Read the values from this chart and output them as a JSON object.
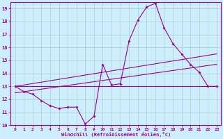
{
  "xlabel": "Windchill (Refroidissement éolien,°C)",
  "background_color": "#cceeff",
  "grid_color": "#aaddcc",
  "line_color": "#990099",
  "xlim": [
    -0.5,
    23.5
  ],
  "ylim": [
    10,
    19.5
  ],
  "yticks": [
    10,
    11,
    12,
    13,
    14,
    15,
    16,
    17,
    18,
    19
  ],
  "xticks": [
    0,
    1,
    2,
    3,
    4,
    5,
    6,
    7,
    8,
    9,
    10,
    11,
    12,
    13,
    14,
    15,
    16,
    17,
    18,
    19,
    20,
    21,
    22,
    23
  ],
  "hours": [
    0,
    1,
    2,
    3,
    4,
    5,
    6,
    7,
    8,
    9,
    10,
    11,
    12,
    13,
    14,
    15,
    16,
    17,
    18,
    19,
    20,
    21,
    22,
    23
  ],
  "curve1": [
    13.0,
    12.6,
    12.4,
    11.9,
    11.5,
    11.3,
    11.4,
    11.4,
    10.1,
    10.7,
    14.7,
    13.1,
    13.2,
    16.5,
    18.1,
    19.1,
    19.4,
    17.5,
    16.3,
    15.5,
    14.7,
    14.1,
    13.0,
    13.0
  ],
  "curve2_x": [
    0,
    23
  ],
  "curve2_y": [
    13.0,
    15.5
  ],
  "curve3_x": [
    0,
    23
  ],
  "curve3_y": [
    13.0,
    13.0
  ],
  "curve4_x": [
    0,
    23
  ],
  "curve4_y": [
    12.5,
    14.7
  ]
}
